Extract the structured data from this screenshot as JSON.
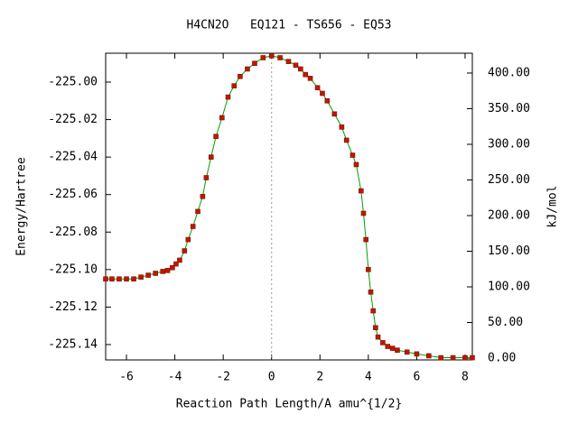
{
  "chart_data": {
    "type": "line",
    "title": "H4CN2O   EQ121 - TS656 - EQ53",
    "x_label": "Reaction Path Length/A amu^{1/2}",
    "y_label": "Energy/Hartree",
    "y2_label": "kJ/mol",
    "color": "#00a000",
    "marker_color": "#cc1100",
    "x": [
      -6.86,
      -6.6,
      -6.3,
      -6.0,
      -5.7,
      -5.4,
      -5.1,
      -4.8,
      -4.5,
      -4.3,
      -4.1,
      -3.95,
      -3.8,
      -3.6,
      -3.45,
      -3.25,
      -3.05,
      -2.85,
      -2.7,
      -2.5,
      -2.3,
      -2.05,
      -1.8,
      -1.55,
      -1.3,
      -1.0,
      -0.7,
      -0.35,
      0,
      0.35,
      0.7,
      1.0,
      1.2,
      1.4,
      1.6,
      1.9,
      2.1,
      2.3,
      2.6,
      2.9,
      3.1,
      3.35,
      3.5,
      3.7,
      3.8,
      3.9,
      4.0,
      4.1,
      4.2,
      4.3,
      4.4,
      4.6,
      4.8,
      5.0,
      5.2,
      5.6,
      6.0,
      6.5,
      7.0,
      7.5,
      8.0,
      8.3
    ],
    "values": [
      -225.105,
      -225.105,
      -225.105,
      -225.105,
      -225.105,
      -225.104,
      -225.103,
      -225.102,
      -225.101,
      -225.1005,
      -225.099,
      -225.097,
      -225.095,
      -225.09,
      -225.084,
      -225.077,
      -225.069,
      -225.061,
      -225.051,
      -225.04,
      -225.029,
      -225.019,
      -225.008,
      -225.002,
      -224.997,
      -224.993,
      -224.99,
      -224.987,
      -224.986,
      -224.987,
      -224.989,
      -224.991,
      -224.993,
      -224.996,
      -224.998,
      -225.003,
      -225.006,
      -225.01,
      -225.017,
      -225.024,
      -225.031,
      -225.039,
      -225.044,
      -225.058,
      -225.07,
      -225.084,
      -225.1,
      -225.112,
      -225.122,
      -225.131,
      -225.136,
      -225.139,
      -225.141,
      -225.142,
      -225.143,
      -225.144,
      -225.145,
      -225.146,
      -225.147,
      -225.147,
      -225.147,
      -225.147
    ],
    "xlim": [
      -6.86,
      8.3
    ],
    "xticks": [
      -6,
      -4,
      -2,
      0,
      2,
      4,
      6,
      8
    ],
    "ylim": [
      -225.1482,
      -224.9846
    ],
    "yticks": [
      {
        "value": -225.14,
        "label": "-225.14"
      },
      {
        "value": -225.12,
        "label": "-225.12"
      },
      {
        "value": -225.1,
        "label": "-225.10"
      },
      {
        "value": -225.08,
        "label": "-225.08"
      },
      {
        "value": -225.06,
        "label": "-225.06"
      },
      {
        "value": -225.04,
        "label": "-225.04"
      },
      {
        "value": -225.02,
        "label": "-225.02"
      },
      {
        "value": -225.0,
        "label": "-225.00"
      }
    ],
    "y2lim": [
      -2.5,
      427.8
    ],
    "y2ticks": [
      {
        "value": 0,
        "label": "0.00"
      },
      {
        "value": 50,
        "label": "50.00"
      },
      {
        "value": 100,
        "label": "100.00"
      },
      {
        "value": 150,
        "label": "150.00"
      },
      {
        "value": 200,
        "label": "200.00"
      },
      {
        "value": 250,
        "label": "250.00"
      },
      {
        "value": 300,
        "label": "300.00"
      },
      {
        "value": 350,
        "label": "350.00"
      },
      {
        "value": 400,
        "label": "400.00"
      }
    ]
  }
}
